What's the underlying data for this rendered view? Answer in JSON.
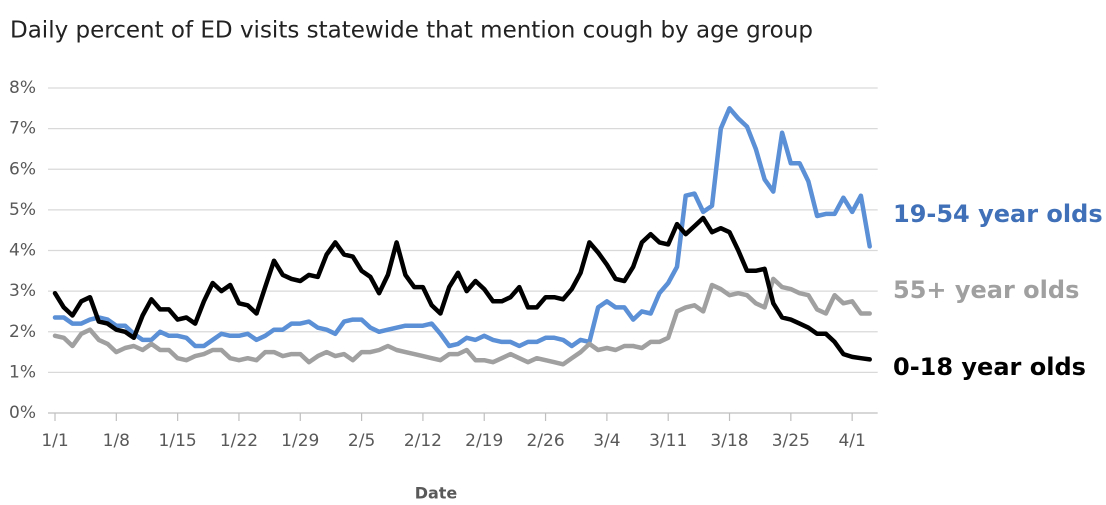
{
  "chart_data": {
    "type": "line",
    "title": "Daily percent of ED visits statewide that mention cough by age group",
    "x_label": "Date",
    "categories": [
      "1/1",
      null,
      null,
      null,
      null,
      null,
      null,
      "1/8",
      null,
      null,
      null,
      null,
      null,
      null,
      "1/15",
      null,
      null,
      null,
      null,
      null,
      null,
      "1/22",
      null,
      null,
      null,
      null,
      null,
      null,
      "1/29",
      null,
      null,
      null,
      null,
      null,
      null,
      "2/5",
      null,
      null,
      null,
      null,
      null,
      null,
      "2/12",
      null,
      null,
      null,
      null,
      null,
      null,
      "2/19",
      null,
      null,
      null,
      null,
      null,
      null,
      "2/26",
      null,
      null,
      null,
      null,
      null,
      null,
      "3/4",
      null,
      null,
      null,
      null,
      null,
      null,
      "3/11",
      null,
      null,
      null,
      null,
      null,
      null,
      "3/18",
      null,
      null,
      null,
      null,
      null,
      null,
      "3/25",
      null,
      null,
      null,
      null,
      null,
      null,
      "4/1",
      null,
      null
    ],
    "ylim": [
      0,
      8
    ],
    "yticks": [
      {
        "value": 0,
        "label": "0%"
      },
      {
        "value": 1,
        "label": "1%"
      },
      {
        "value": 2,
        "label": "2%"
      },
      {
        "value": 3,
        "label": "3%"
      },
      {
        "value": 4,
        "label": "4%"
      },
      {
        "value": 5,
        "label": "5%"
      },
      {
        "value": 6,
        "label": "6%"
      },
      {
        "value": 7,
        "label": "7%"
      },
      {
        "value": 8,
        "label": "8%"
      }
    ],
    "grid": true,
    "series": [
      {
        "name": "19-54 year olds",
        "color": "#5b8fd6",
        "values": [
          2.35,
          2.35,
          2.2,
          2.2,
          2.3,
          2.35,
          2.3,
          2.15,
          2.15,
          1.95,
          1.8,
          1.8,
          2.0,
          1.9,
          1.9,
          1.85,
          1.65,
          1.65,
          1.8,
          1.95,
          1.9,
          1.9,
          1.95,
          1.8,
          1.9,
          2.05,
          2.05,
          2.2,
          2.2,
          2.25,
          2.1,
          2.05,
          1.95,
          2.25,
          2.3,
          2.3,
          2.1,
          2.0,
          2.05,
          2.1,
          2.15,
          2.15,
          2.15,
          2.2,
          1.95,
          1.65,
          1.7,
          1.85,
          1.8,
          1.9,
          1.8,
          1.75,
          1.75,
          1.65,
          1.75,
          1.75,
          1.85,
          1.85,
          1.8,
          1.65,
          1.8,
          1.75,
          2.6,
          2.75,
          2.6,
          2.6,
          2.3,
          2.5,
          2.45,
          2.95,
          3.2,
          3.6,
          5.35,
          5.4,
          4.95,
          5.1,
          7.0,
          7.5,
          7.25,
          7.05,
          6.5,
          5.75,
          5.45,
          6.9,
          6.15,
          6.15,
          5.7,
          4.85,
          4.9,
          4.9,
          5.3,
          4.95,
          5.35,
          4.1
        ]
      },
      {
        "name": "55+ year olds",
        "color": "#a0a0a0",
        "values": [
          1.9,
          1.85,
          1.65,
          1.95,
          2.05,
          1.8,
          1.7,
          1.5,
          1.6,
          1.65,
          1.55,
          1.7,
          1.55,
          1.55,
          1.35,
          1.3,
          1.4,
          1.45,
          1.55,
          1.55,
          1.35,
          1.3,
          1.35,
          1.3,
          1.5,
          1.5,
          1.4,
          1.45,
          1.45,
          1.25,
          1.4,
          1.5,
          1.4,
          1.45,
          1.3,
          1.5,
          1.5,
          1.55,
          1.65,
          1.55,
          1.5,
          1.45,
          1.4,
          1.35,
          1.3,
          1.45,
          1.45,
          1.55,
          1.3,
          1.3,
          1.25,
          1.35,
          1.45,
          1.35,
          1.25,
          1.35,
          1.3,
          1.25,
          1.2,
          1.35,
          1.5,
          1.7,
          1.55,
          1.6,
          1.55,
          1.65,
          1.65,
          1.6,
          1.75,
          1.75,
          1.85,
          2.5,
          2.6,
          2.65,
          2.5,
          3.15,
          3.05,
          2.9,
          2.95,
          2.9,
          2.7,
          2.6,
          3.3,
          3.1,
          3.05,
          2.95,
          2.9,
          2.55,
          2.45,
          2.9,
          2.7,
          2.75,
          2.45,
          2.45
        ]
      },
      {
        "name": "0-18 year olds",
        "color": "#000000",
        "values": [
          2.95,
          2.6,
          2.4,
          2.75,
          2.85,
          2.25,
          2.2,
          2.05,
          2.0,
          1.85,
          2.4,
          2.8,
          2.55,
          2.55,
          2.3,
          2.35,
          2.2,
          2.75,
          3.2,
          3.0,
          3.15,
          2.7,
          2.65,
          2.45,
          3.1,
          3.75,
          3.4,
          3.3,
          3.25,
          3.4,
          3.35,
          3.9,
          4.2,
          3.9,
          3.85,
          3.5,
          3.35,
          2.95,
          3.4,
          4.2,
          3.4,
          3.1,
          3.1,
          2.65,
          2.45,
          3.1,
          3.45,
          3.0,
          3.25,
          3.05,
          2.75,
          2.75,
          2.85,
          3.1,
          2.6,
          2.6,
          2.85,
          2.85,
          2.8,
          3.05,
          3.45,
          4.2,
          3.95,
          3.65,
          3.3,
          3.25,
          3.6,
          4.2,
          4.4,
          4.2,
          4.15,
          4.65,
          4.4,
          4.6,
          4.8,
          4.45,
          4.55,
          4.45,
          4.0,
          3.5,
          3.5,
          3.55,
          2.7,
          2.35,
          2.3,
          2.2,
          2.1,
          1.95,
          1.95,
          1.75,
          1.45,
          1.38,
          1.35,
          1.32
        ]
      }
    ]
  }
}
